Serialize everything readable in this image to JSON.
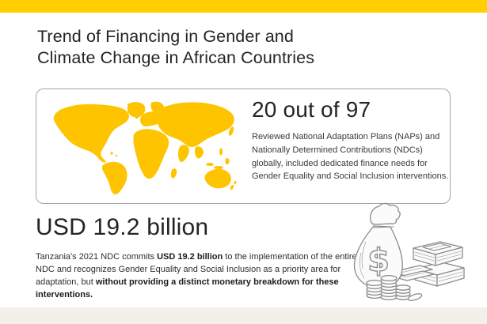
{
  "header": {
    "title_lines": [
      "Trend of Financing in Gender and",
      "Climate Change in African Countries"
    ]
  },
  "stat_card": {
    "headline": "20 out of 97",
    "description": "Reviewed National Adaptation Plans (NAPs) and Nationally Determined Contributions (NDCs) globally, included dedicated finance needs for Gender Equality and Social Inclusion interventions.",
    "map_icon": "world-map-icon"
  },
  "highlight": {
    "headline": "USD 19.2 billion",
    "paragraph": [
      {
        "text": "Tanzania's 2021 NDC commits ",
        "bold": false
      },
      {
        "text": "USD 19.2 billion",
        "bold": true
      },
      {
        "text": " to the implementation of the entire NDC and recognizes Gender Equality and Social Inclusion as a priority area for adaptation, but ",
        "bold": false
      },
      {
        "text": "without providing a distinct monetary breakdown for these interventions.",
        "bold": true
      }
    ],
    "illustration_icon": "money-bag-coins-banknotes-icon"
  },
  "colors": {
    "accent_yellow": "#FFCE00",
    "map_yellow": "#FFC400",
    "footer_cream": "#F2F0EB",
    "text_dark": "#242424"
  }
}
